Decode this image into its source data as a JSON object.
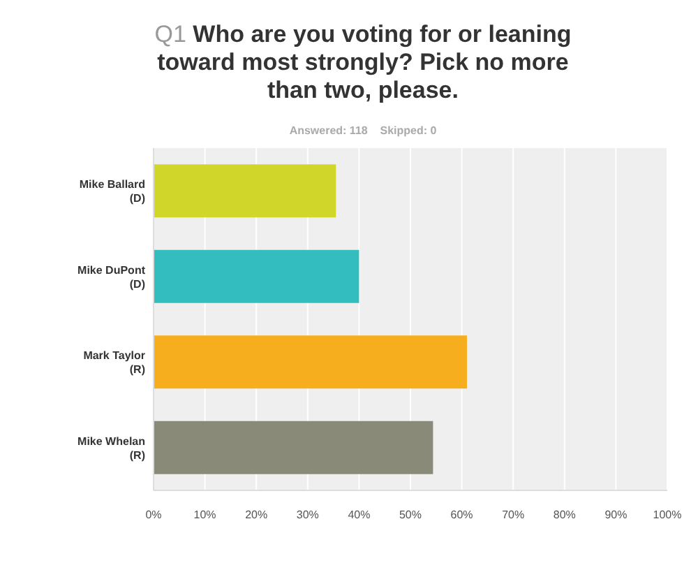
{
  "chart_data": {
    "type": "bar",
    "orientation": "horizontal",
    "title": "Q1 Who are you voting for or leaning toward most strongly? Pick no more than two, please.",
    "subtitle": "Answered: 118    Skipped: 0",
    "categories": [
      "Mike Ballard (D)",
      "Mike DuPont (D)",
      "Mark Taylor (R)",
      "Mike Whelan (R)"
    ],
    "values": [
      35.5,
      40,
      61,
      54.4
    ],
    "colors": [
      "#d0d62a",
      "#33bdbe",
      "#f6ae1f",
      "#8a8a78"
    ],
    "xlim": [
      0,
      100
    ],
    "xticks": [
      {
        "value": 0,
        "label": "0%"
      },
      {
        "value": 10,
        "label": "10%"
      },
      {
        "value": 20,
        "label": "20%"
      },
      {
        "value": 30,
        "label": "30%"
      },
      {
        "value": 40,
        "label": "40%"
      },
      {
        "value": 50,
        "label": "50%"
      },
      {
        "value": 60,
        "label": "60%"
      },
      {
        "value": 70,
        "label": "70%"
      },
      {
        "value": 80,
        "label": "80%"
      },
      {
        "value": 90,
        "label": "90%"
      },
      {
        "value": 100,
        "label": "100%"
      }
    ],
    "grid": "x"
  }
}
